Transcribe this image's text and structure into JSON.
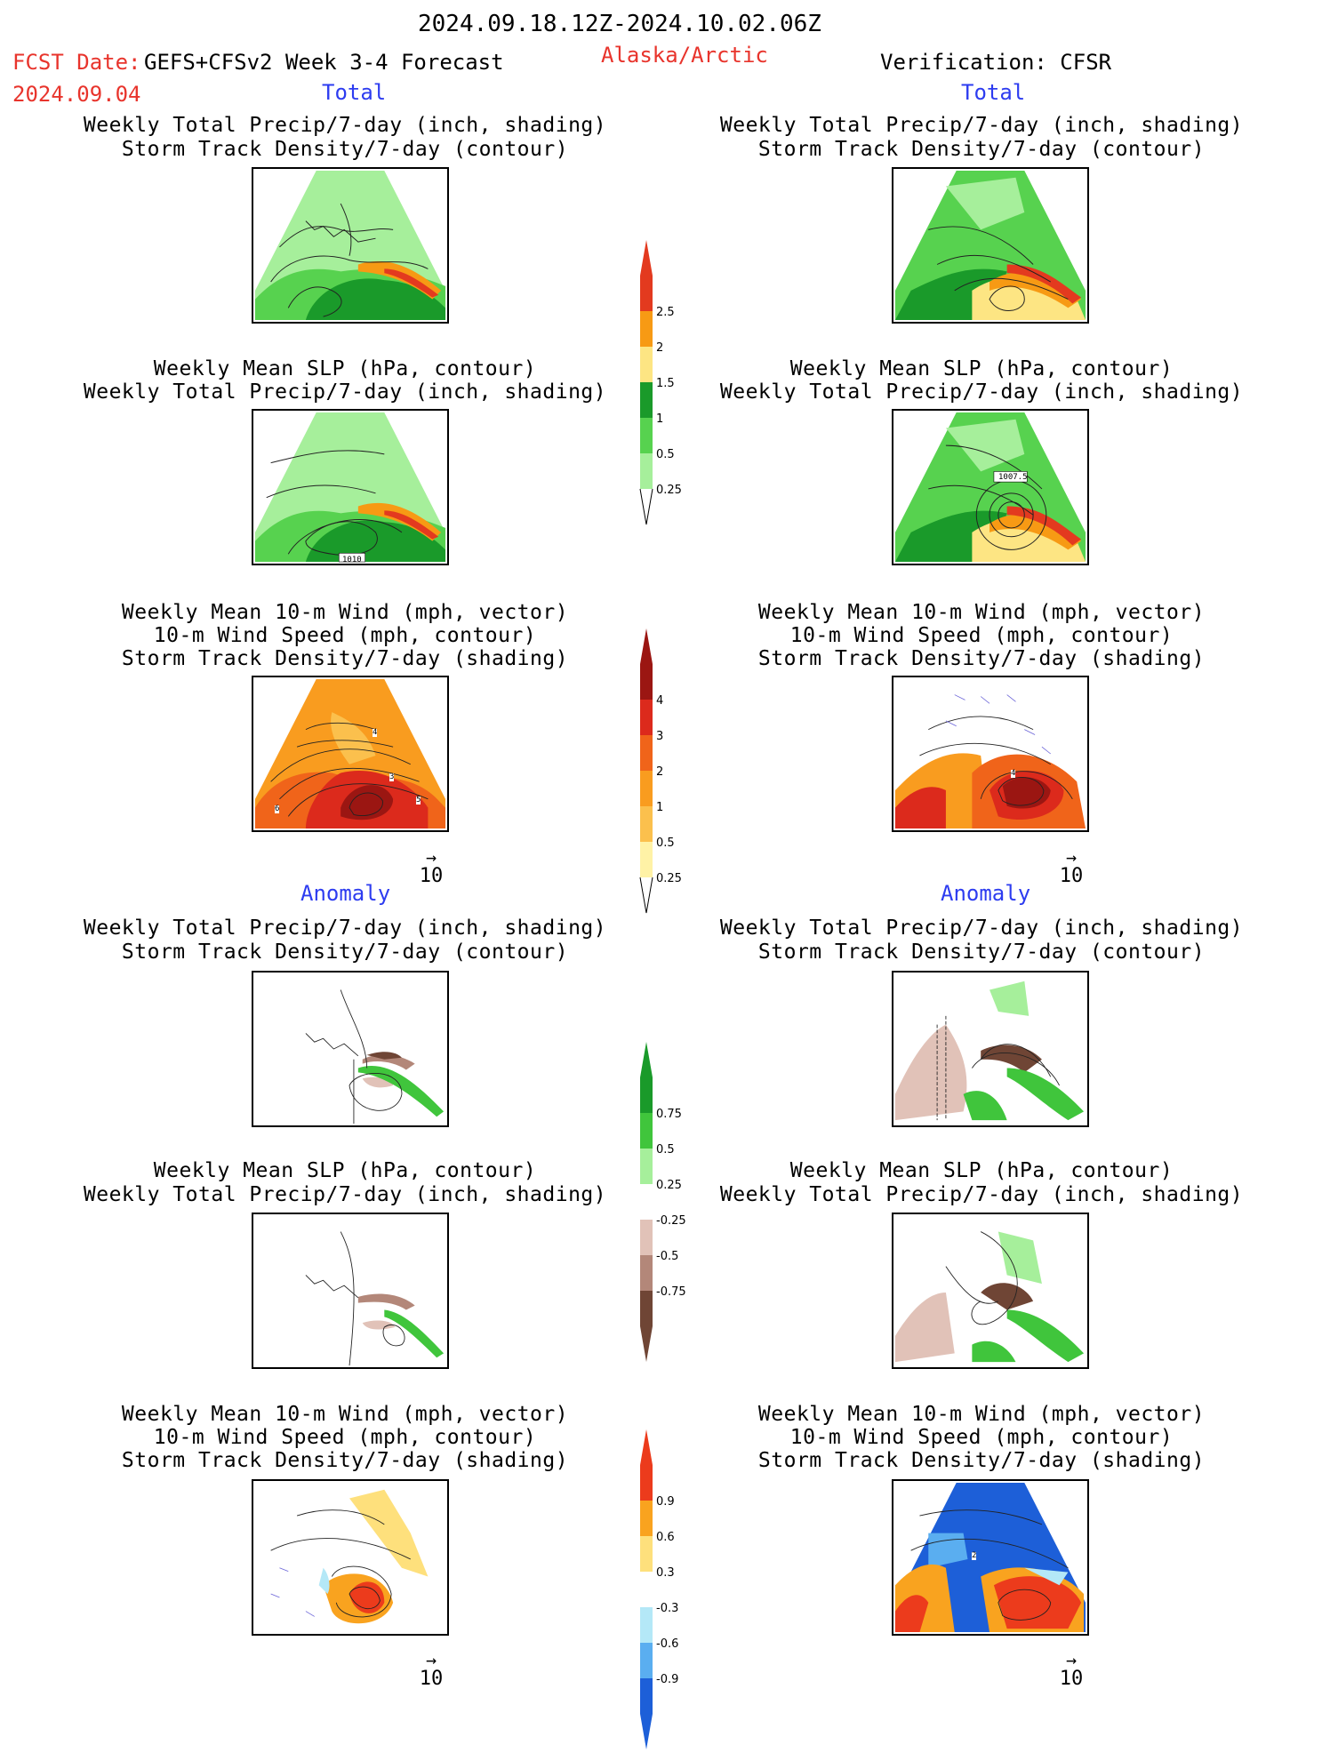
{
  "header": {
    "period": "2024.09.18.12Z-2024.10.02.06Z",
    "fcst_label": "FCST Date:",
    "fcst_model": "GEFS+CFSv2 Week 3-4 Forecast",
    "fcst_date": "2024.09.04",
    "region": "Alaska/Arctic",
    "verification": "Verification: CFSR"
  },
  "sections": {
    "total": "Total",
    "anomaly": "Anomaly"
  },
  "titles": {
    "precip_track": [
      "Weekly Total Precip/7-day (inch, shading)",
      "Storm Track Density/7-day (contour)"
    ],
    "slp_precip": [
      "Weekly Mean SLP (hPa, contour)",
      "Weekly Total Precip/7-day (inch, shading)"
    ],
    "wind": [
      "Weekly Mean 10-m Wind (mph, vector)",
      "10-m Wind Speed (mph, contour)",
      "Storm Track Density/7-day (shading)"
    ]
  },
  "panel_labels": {
    "fc_slp_total": "1010",
    "ob_slp_total": "1007.5",
    "fc_wind_total_a": "4",
    "fc_wind_total_b": "3",
    "fc_wind_total_c": "5",
    "fc_wind_total_d": "6",
    "ob_wind_total": "4",
    "ob_wind_anom": "2"
  },
  "vector_ref": "10",
  "colorbars": {
    "precip_total": {
      "labels": [
        "2.5",
        "2",
        "1.5",
        "1",
        "0.5",
        "0.25"
      ],
      "colors": [
        "#e33a1f",
        "#f79a14",
        "#fde583",
        "#1a9a2a",
        "#57d24f",
        "#a6ef9b"
      ]
    },
    "track_total": {
      "labels": [
        "4",
        "3",
        "2",
        "1",
        "0.5",
        "0.25"
      ],
      "colors": [
        "#9b1612",
        "#dc2a1c",
        "#f0641a",
        "#f99c1f",
        "#fbc04d",
        "#fff2a6"
      ]
    },
    "precip_anom": {
      "labels": [
        "0.75",
        "0.5",
        "0.25",
        "-0.25",
        "-0.5",
        "-0.75"
      ],
      "colors": [
        "#1a9a2a",
        "#40c53c",
        "#a6ef9b",
        "#ffffff",
        "#e1c2b8",
        "#b38779",
        "#6f4535"
      ]
    },
    "track_anom": {
      "labels": [
        "0.9",
        "0.6",
        "0.3",
        "-0.3",
        "-0.6",
        "-0.9"
      ],
      "colors": [
        "#ec3b1c",
        "#f9a31f",
        "#fee07c",
        "#ffffff",
        "#b4e8f7",
        "#5aaef0",
        "#1d5fd8"
      ]
    }
  }
}
